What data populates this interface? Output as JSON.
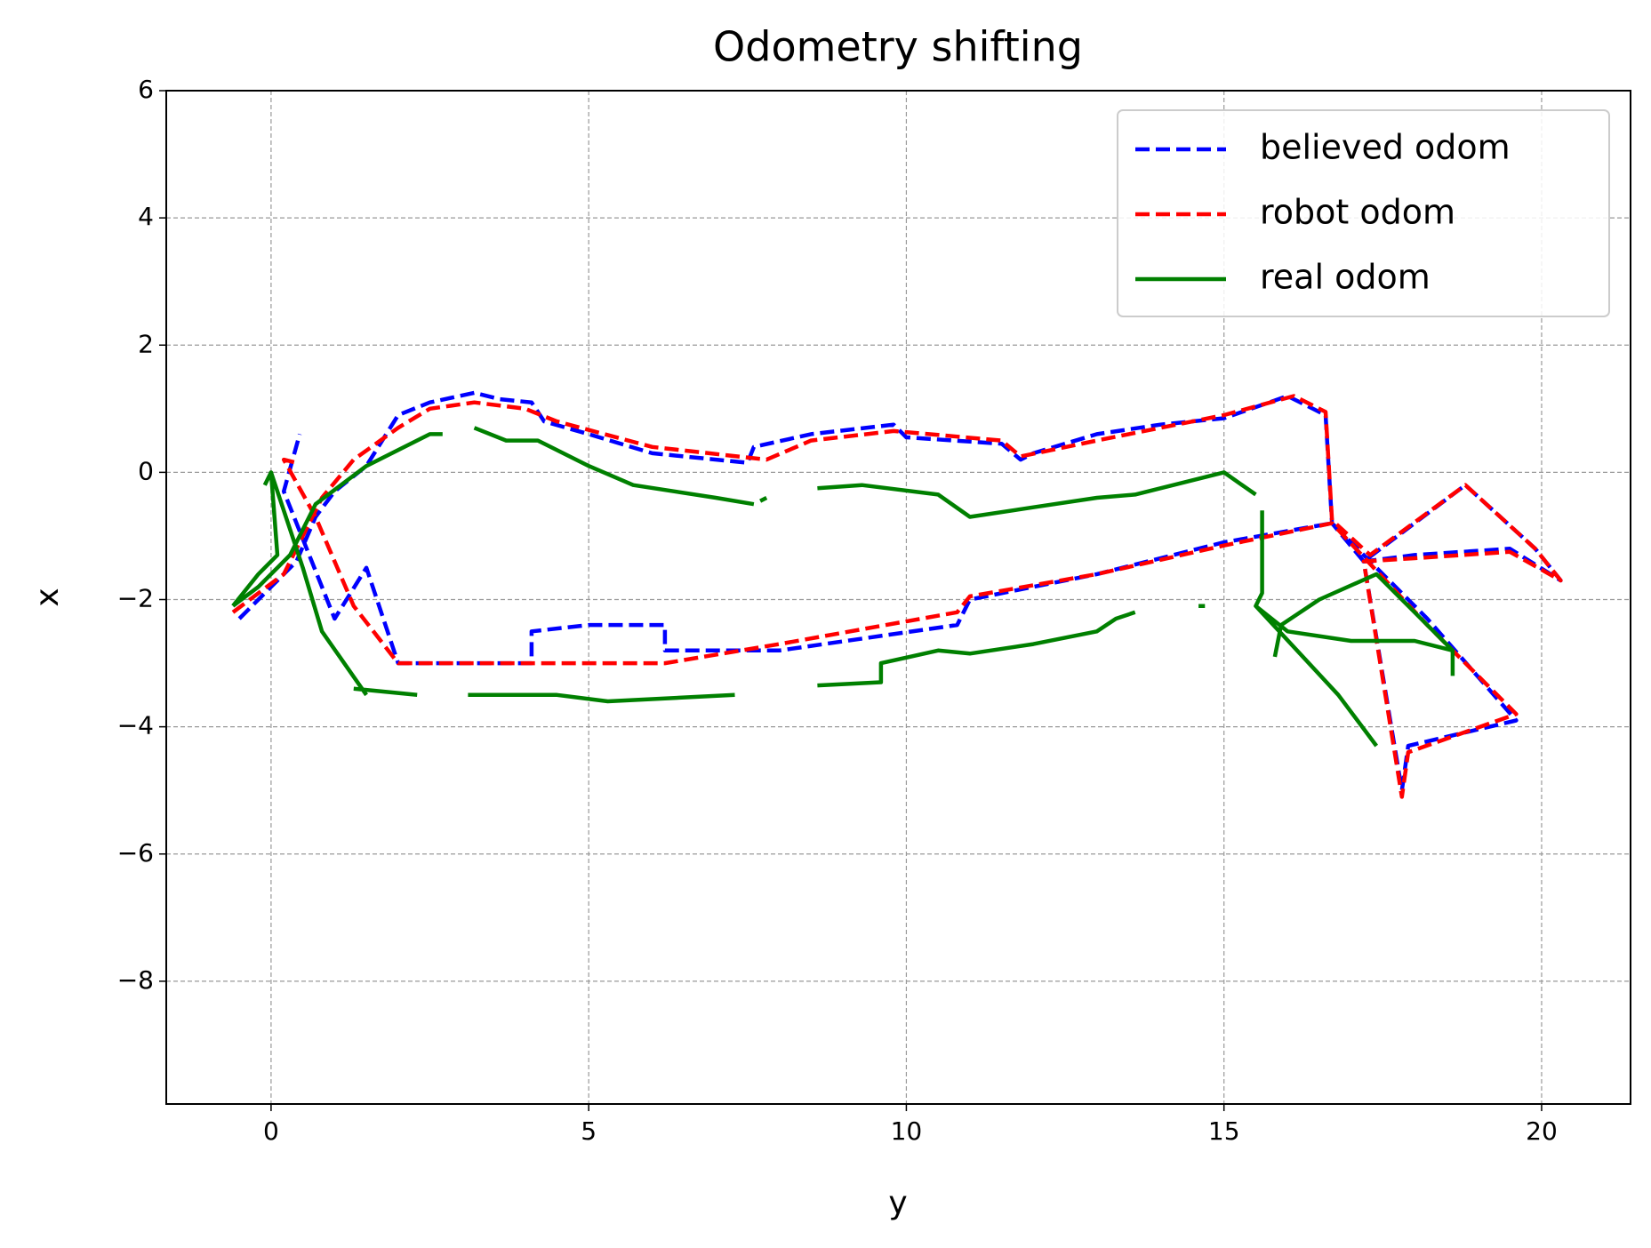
{
  "chart_data": {
    "type": "line",
    "title": "Odometry shifting",
    "x_label": "y",
    "y_label": "x",
    "xlim": [
      -1.65,
      21.4
    ],
    "ylim": [
      -9.93,
      6
    ],
    "xticks": [
      0,
      5,
      10,
      15,
      20
    ],
    "yticks": [
      {
        "value": -8,
        "label": "−8"
      },
      {
        "value": -6,
        "label": "−6"
      },
      {
        "value": -4,
        "label": "−4"
      },
      {
        "value": -2,
        "label": "−2"
      },
      0,
      2,
      4,
      6
    ],
    "grid": true,
    "legend": "upper right",
    "series": [
      {
        "name": "believed odom",
        "color": "#0000ff",
        "linestyle": "dashed",
        "x": [
          -0.5,
          0,
          0.4,
          0.7,
          1,
          1.5,
          2,
          2.5,
          3.2,
          3.6,
          4.1,
          4.3,
          5,
          6,
          7.5,
          7.6,
          8.5,
          9.8,
          10,
          11.5,
          11.8,
          12,
          13,
          14,
          15,
          16,
          16.6,
          16.7,
          17.2,
          18.8,
          19.9,
          20.3,
          19.5,
          18,
          17.2,
          17.8,
          17.9,
          19.6,
          18.2,
          16.7,
          15,
          13,
          11,
          10.8,
          8,
          6.2,
          6.2,
          5,
          4.1,
          4.1,
          2,
          1.5,
          1,
          0.2,
          0.45
        ],
        "values": [
          -2.3,
          -1.8,
          -1.4,
          -0.7,
          -0.3,
          0.1,
          0.9,
          1.1,
          1.25,
          1.15,
          1.1,
          0.8,
          0.6,
          0.3,
          0.15,
          0.4,
          0.6,
          0.75,
          0.55,
          0.45,
          0.2,
          0.3,
          0.6,
          0.75,
          0.85,
          1.2,
          0.9,
          -0.8,
          -1.4,
          -0.2,
          -1.2,
          -1.7,
          -1.2,
          -1.3,
          -1.4,
          -5,
          -4.3,
          -3.9,
          -2.3,
          -0.8,
          -1.1,
          -1.6,
          -2.0,
          -2.4,
          -2.8,
          -2.8,
          -2.4,
          -2.4,
          -2.5,
          -3.0,
          -3.0,
          -1.5,
          -2.3,
          -0.3,
          0.6
        ]
      },
      {
        "name": "robot odom",
        "color": "#ff0000",
        "linestyle": "dashed",
        "x": [
          -0.6,
          0.2,
          0.5,
          0.8,
          1.3,
          2,
          2.5,
          3.2,
          4,
          4.5,
          6,
          7.8,
          8.5,
          9.8,
          11.5,
          11.8,
          13,
          15,
          16.1,
          16.6,
          16.7,
          17.3,
          18.8,
          19.9,
          20.3,
          19.5,
          18,
          17.2,
          17.8,
          17.9,
          19.6,
          18.2,
          16.7,
          15,
          13,
          11,
          10.8,
          8,
          6.2,
          4,
          2,
          1.3,
          0.7,
          0.2,
          0.4
        ],
        "values": [
          -2.2,
          -1.6,
          -1.0,
          -0.4,
          0.2,
          0.7,
          1.0,
          1.1,
          1.0,
          0.8,
          0.4,
          0.2,
          0.5,
          0.65,
          0.5,
          0.25,
          0.5,
          0.9,
          1.2,
          0.95,
          -0.75,
          -1.3,
          -0.2,
          -1.2,
          -1.7,
          -1.25,
          -1.35,
          -1.4,
          -5.1,
          -4.4,
          -3.8,
          -2.4,
          -0.8,
          -1.15,
          -1.6,
          -1.95,
          -2.2,
          -2.7,
          -3.0,
          -3.0,
          -3.0,
          -2.1,
          -0.7,
          0.2,
          0.15
        ]
      },
      {
        "name": "real odom",
        "color": "#008000",
        "linestyle": "solid",
        "x": [
          -0.6,
          -0.2,
          0.3,
          0.7,
          1.5,
          2.5,
          2.7,
          null,
          3.2,
          3.7,
          4,
          4.2,
          5,
          5.7,
          7,
          7.6,
          null,
          7.7,
          7.8,
          null,
          8.6,
          9.3,
          10.5,
          11,
          12,
          13,
          13.6,
          15,
          15.5,
          null,
          15.6,
          15.6,
          15.5,
          16,
          17,
          18,
          18.6,
          18.6,
          null,
          15.8,
          15.9,
          16.5,
          17.4,
          18,
          18.6,
          null,
          15.5,
          16.8,
          17.4,
          null,
          1.3,
          2.3,
          null,
          3.1,
          4.5,
          5.3,
          7.3,
          null,
          8.6,
          9.6,
          9.6,
          10.5,
          11,
          12,
          13,
          13.3,
          13.6,
          null,
          14.6,
          14.7,
          null,
          -0.1,
          0,
          0.1,
          -0.2,
          -0.6,
          null,
          0,
          0.5,
          0.8,
          1.5
        ],
        "values": [
          -2.1,
          -1.8,
          -1.3,
          -0.5,
          0.1,
          0.6,
          0.6,
          null,
          0.7,
          0.5,
          0.5,
          0.5,
          0.1,
          -0.2,
          -0.4,
          -0.5,
          null,
          -0.45,
          -0.4,
          null,
          -0.25,
          -0.2,
          -0.35,
          -0.7,
          -0.55,
          -0.4,
          -0.35,
          0,
          -0.35,
          null,
          -0.6,
          -1.9,
          -2.1,
          -2.5,
          -2.65,
          -2.65,
          -2.8,
          -3.2,
          null,
          -2.9,
          -2.4,
          -2.0,
          -1.6,
          -2.2,
          -2.8,
          null,
          -2.1,
          -3.5,
          -4.3,
          null,
          -3.4,
          -3.5,
          null,
          -3.5,
          -3.5,
          -3.6,
          -3.5,
          null,
          -3.35,
          -3.3,
          -3.0,
          -2.8,
          -2.85,
          -2.7,
          -2.5,
          -2.3,
          -2.2,
          null,
          -2.1,
          -2.1,
          null,
          -0.2,
          0,
          -1.3,
          -1.6,
          -2.1,
          null,
          0,
          -1.5,
          -2.5,
          -3.5
        ]
      }
    ]
  }
}
